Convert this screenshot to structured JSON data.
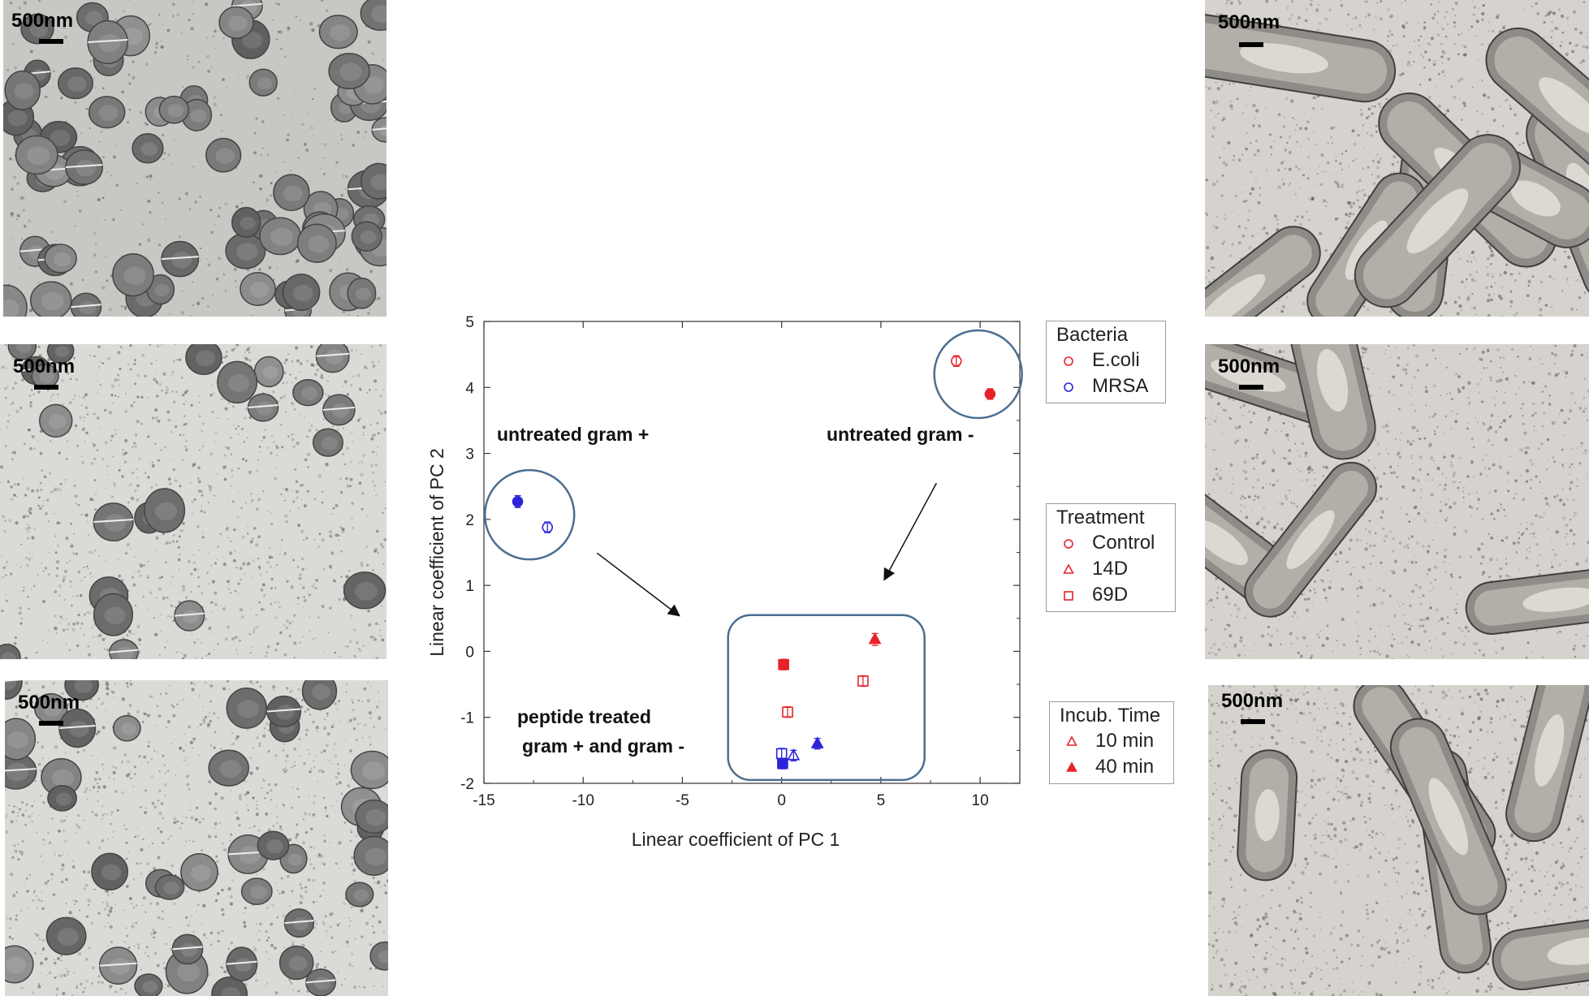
{
  "micrographs": {
    "scale_label": "500nm",
    "panels": [
      {
        "id": "left-top",
        "subject": "cocci"
      },
      {
        "id": "left-middle",
        "subject": "cocci-treated"
      },
      {
        "id": "left-bottom",
        "subject": "cocci-treated"
      },
      {
        "id": "right-top",
        "subject": "rods"
      },
      {
        "id": "right-middle",
        "subject": "rods-treated"
      },
      {
        "id": "right-bottom",
        "subject": "rods-treated"
      }
    ]
  },
  "chart_data": {
    "type": "scatter",
    "xlabel": "Linear coefficient of PC 1",
    "ylabel": "Linear coefficient of PC 2",
    "xlim": [
      -15,
      12
    ],
    "ylim": [
      -2,
      5
    ],
    "xticks": [
      -15,
      -10,
      -5,
      0,
      5,
      10
    ],
    "yticks": [
      -2,
      -1,
      0,
      1,
      2,
      3,
      4,
      5
    ],
    "grid": false,
    "colors": {
      "ecoli": "#e8222a",
      "mrsa": "#2b24d8",
      "frame": "#4a6f91"
    },
    "points": [
      {
        "bacteria": "E.coli",
        "treatment": "Control",
        "incubation": "10 min",
        "x": 8.8,
        "y": 4.4,
        "err": 0.08
      },
      {
        "bacteria": "E.coli",
        "treatment": "Control",
        "incubation": "40 min",
        "x": 10.5,
        "y": 3.9,
        "err": 0.08
      },
      {
        "bacteria": "MRSA",
        "treatment": "Control",
        "incubation": "40 min",
        "x": -13.3,
        "y": 2.27,
        "err": 0.09
      },
      {
        "bacteria": "MRSA",
        "treatment": "Control",
        "incubation": "10 min",
        "x": -11.8,
        "y": 1.88,
        "err": 0.08
      },
      {
        "bacteria": "E.coli",
        "treatment": "14D",
        "incubation": "40 min",
        "x": 4.7,
        "y": 0.18,
        "err": 0.09
      },
      {
        "bacteria": "E.coli",
        "treatment": "69D",
        "incubation": "40 min",
        "x": 0.1,
        "y": -0.2,
        "err": 0.08
      },
      {
        "bacteria": "E.coli",
        "treatment": "69D",
        "incubation": "10 min",
        "x": 4.1,
        "y": -0.45,
        "err": 0.08
      },
      {
        "bacteria": "E.coli",
        "treatment": "69D",
        "incubation": "10 min",
        "x": 0.3,
        "y": -0.92,
        "err": 0.08
      },
      {
        "bacteria": "MRSA",
        "treatment": "14D",
        "incubation": "40 min",
        "x": 1.8,
        "y": -1.4,
        "err": 0.08
      },
      {
        "bacteria": "MRSA",
        "treatment": "69D",
        "incubation": "10 min",
        "x": 0.0,
        "y": -1.55,
        "err": 0.08
      },
      {
        "bacteria": "MRSA",
        "treatment": "14D",
        "incubation": "10 min",
        "x": 0.6,
        "y": -1.58,
        "err": 0.08
      },
      {
        "bacteria": "MRSA",
        "treatment": "69D",
        "incubation": "40 min",
        "x": 0.05,
        "y": -1.7,
        "err": 0.08
      }
    ],
    "annotations": [
      {
        "id": "untreated-gram-pos",
        "text": "untreated gram +"
      },
      {
        "id": "untreated-gram-neg",
        "text": "untreated gram -"
      },
      {
        "id": "peptide-treated-1",
        "text": "peptide treated"
      },
      {
        "id": "peptide-treated-2",
        "text": "gram +  and gram -"
      }
    ],
    "legends": [
      {
        "title": "Bacteria",
        "items": [
          {
            "label": "E.coli",
            "symbol": "circle",
            "color": "#e8222a",
            "filled": false
          },
          {
            "label": "MRSA",
            "symbol": "circle",
            "color": "#2b24d8",
            "filled": false
          }
        ]
      },
      {
        "title": "Treatment",
        "items": [
          {
            "label": "Control",
            "symbol": "circle",
            "color": "#e8222a",
            "filled": false
          },
          {
            "label": "14D",
            "symbol": "triangle",
            "color": "#e8222a",
            "filled": false
          },
          {
            "label": "69D",
            "symbol": "square",
            "color": "#e8222a",
            "filled": false
          }
        ]
      },
      {
        "title": "Incub. Time",
        "items": [
          {
            "label": "10 min",
            "symbol": "triangle",
            "color": "#e8222a",
            "filled": false
          },
          {
            "label": "40 min",
            "symbol": "triangle",
            "color": "#e8222a",
            "filled": true
          }
        ]
      }
    ]
  }
}
